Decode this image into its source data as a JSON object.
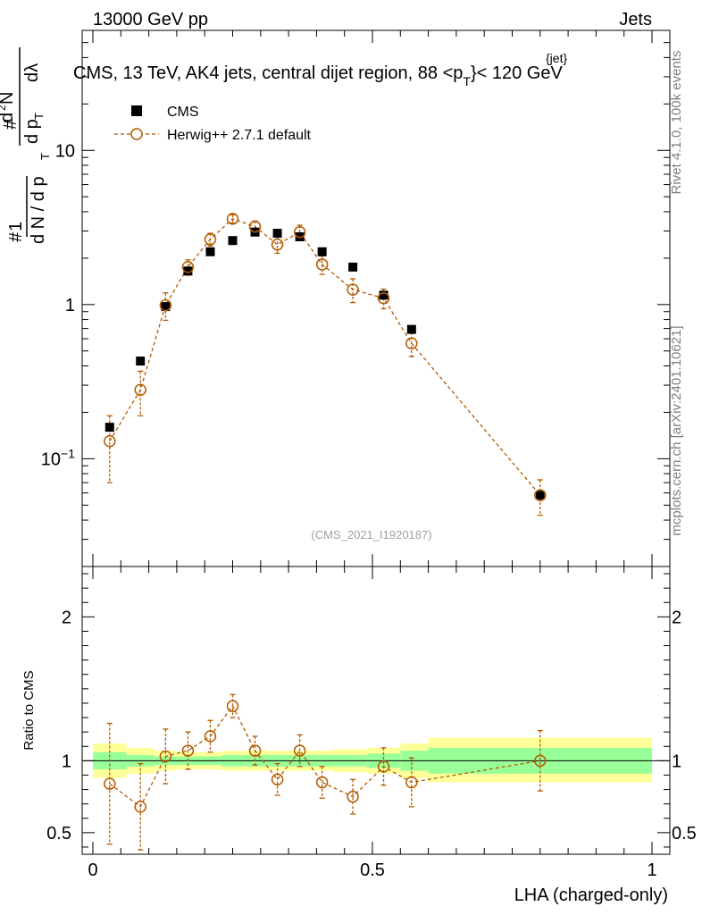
{
  "header": {
    "left": "13000 GeV pp",
    "right": "Jets"
  },
  "plot_title": {
    "main": "CMS, 13 TeV, AK4 jets, central dijet region, 88 <p",
    "sub": "T",
    "sup": "{jet}",
    "end": "}< 120 GeV"
  },
  "side_text": {
    "rivet": "Rivet 4.1.0,  100k events",
    "mcplots": "mcplots.cern.ch [arXiv:2401.10621]"
  },
  "analysis_id": "(CMS_2021_I1920187)",
  "ylabel_parts": {
    "hash1": "#",
    "one": "1",
    "dN": "d N / d p",
    "T1": "T",
    "hash2": "#",
    "d2N": "d",
    "two": "2",
    "N": "N",
    "dpT": "d p",
    "T2": "T",
    "dlambda": "dλ"
  },
  "chart_data": {
    "type": "scatter",
    "title": "CMS, 13 TeV, AK4 jets, central dijet region, 88 < pT{jet} < 120 GeV",
    "xlabel": "LHA (charged-only)",
    "ylabel": "1/dN/dpT d2N/dpT dlambda",
    "ratio_ylabel": "Ratio to CMS",
    "xlim": [
      0,
      1
    ],
    "ylim": [
      0.02,
      60
    ],
    "ratio_ylim": [
      0.35,
      2.35
    ],
    "y_scale": "log",
    "x_ticks": [
      0,
      0.5,
      1
    ],
    "x_tick_labels": [
      "0",
      "0.5",
      "1"
    ],
    "y_tick_labels": [
      "10−1",
      "1",
      "10"
    ],
    "ratio_ticks": [
      0.5,
      1,
      2
    ],
    "ratio_tick_labels": [
      "0.5",
      "1",
      "2"
    ],
    "legend_position": "top-left",
    "series": [
      {
        "name": "CMS",
        "style": "black-square",
        "x": [
          0.03,
          0.085,
          0.13,
          0.17,
          0.21,
          0.25,
          0.29,
          0.33,
          0.37,
          0.41,
          0.465,
          0.52,
          0.57,
          0.8
        ],
        "values": [
          0.16,
          0.43,
          0.97,
          1.65,
          2.2,
          2.6,
          2.95,
          2.9,
          2.75,
          2.2,
          1.75,
          1.15,
          0.69,
          0.058
        ]
      },
      {
        "name": "Herwig++ 2.7.1 default",
        "style": "orange-open-circle-dashed",
        "color": "#b35a00",
        "x": [
          0.03,
          0.085,
          0.13,
          0.17,
          0.21,
          0.25,
          0.29,
          0.33,
          0.37,
          0.41,
          0.465,
          0.52,
          0.57,
          0.8
        ],
        "values": [
          0.13,
          0.28,
          0.99,
          1.75,
          2.65,
          3.6,
          3.2,
          2.45,
          2.95,
          1.82,
          1.25,
          1.1,
          0.56,
          0.058
        ],
        "err_low": [
          0.06,
          0.09,
          0.2,
          0.2,
          0.25,
          0.22,
          0.28,
          0.3,
          0.32,
          0.25,
          0.22,
          0.16,
          0.1,
          0.015
        ],
        "err_high": [
          0.06,
          0.09,
          0.2,
          0.2,
          0.25,
          0.22,
          0.28,
          0.3,
          0.32,
          0.25,
          0.22,
          0.16,
          0.1,
          0.015
        ],
        "ratio": [
          0.84,
          0.68,
          1.03,
          1.07,
          1.17,
          1.38,
          1.07,
          0.87,
          1.07,
          0.85,
          0.75,
          0.96,
          0.85,
          1.0
        ],
        "ratio_err_low": [
          0.42,
          0.3,
          0.19,
          0.13,
          0.11,
          0.08,
          0.1,
          0.11,
          0.11,
          0.11,
          0.12,
          0.13,
          0.17,
          0.21
        ],
        "ratio_err_high": [
          0.42,
          0.3,
          0.19,
          0.13,
          0.11,
          0.08,
          0.1,
          0.11,
          0.11,
          0.11,
          0.12,
          0.13,
          0.17,
          0.21
        ]
      }
    ],
    "uncertainty_bands": {
      "bin_edges": [
        0,
        0.06,
        0.11,
        0.15,
        0.19,
        0.23,
        0.27,
        0.31,
        0.35,
        0.39,
        0.43,
        0.49,
        0.55,
        0.6,
        1.0
      ],
      "green_low": [
        0.94,
        0.96,
        0.97,
        0.97,
        0.97,
        0.96,
        0.96,
        0.96,
        0.96,
        0.96,
        0.96,
        0.95,
        0.93,
        0.91
      ],
      "green_high": [
        1.06,
        1.04,
        1.03,
        1.03,
        1.03,
        1.04,
        1.04,
        1.04,
        1.04,
        1.04,
        1.04,
        1.05,
        1.07,
        1.09
      ],
      "yellow_low": [
        0.88,
        0.91,
        0.93,
        0.94,
        0.94,
        0.93,
        0.93,
        0.93,
        0.93,
        0.93,
        0.92,
        0.91,
        0.88,
        0.85
      ],
      "yellow_high": [
        1.12,
        1.09,
        1.07,
        1.06,
        1.06,
        1.07,
        1.07,
        1.07,
        1.07,
        1.07,
        1.08,
        1.09,
        1.12,
        1.16
      ]
    }
  },
  "colors": {
    "mc": "#b35a00",
    "green": "#99ff99",
    "yellow": "#ffff99",
    "grey": "#808080"
  }
}
